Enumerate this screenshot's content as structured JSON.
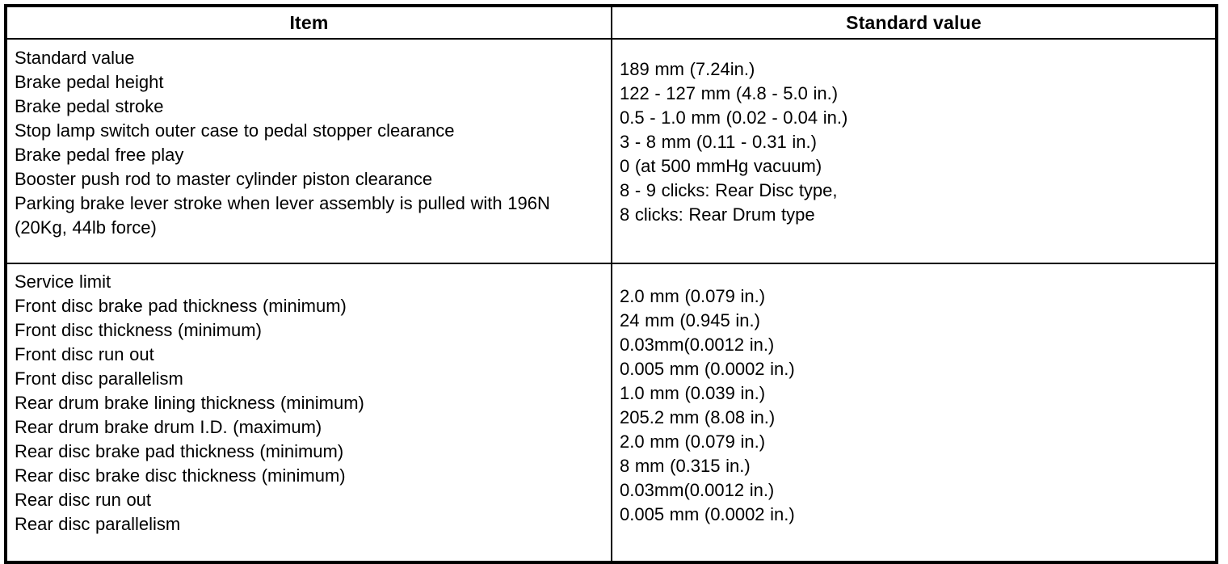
{
  "table": {
    "columns": [
      "Item",
      "Standard value"
    ],
    "sections": [
      {
        "name": "Standard value",
        "items": [
          "Standard value",
          "Brake pedal height",
          "Brake pedal stroke",
          "Stop lamp switch outer case to pedal stopper clearance",
          "Brake pedal free play",
          "Booster push rod to master cylinder piston clearance",
          "Parking brake lever stroke when lever assembly is pulled with 196N (20Kg, 44lb force)"
        ],
        "values": [
          "189 mm (7.24in.)",
          "122 - 127 mm (4.8 - 5.0 in.)",
          "0.5 - 1.0 mm (0.02 - 0.04 in.)",
          "3 - 8 mm (0.11 - 0.31 in.)",
          "0 (at 500 mmHg vacuum)",
          "8 - 9 clicks: Rear Disc type,",
          "8 clicks: Rear Drum type"
        ]
      },
      {
        "name": "Service limit",
        "items": [
          "Service limit",
          "Front disc brake pad thickness (minimum)",
          "Front disc thickness (minimum)",
          "Front disc run out",
          "Front disc parallelism",
          "Rear drum brake lining thickness (minimum)",
          "Rear drum brake drum I.D. (maximum)",
          "Rear disc brake pad thickness (minimum)",
          "Rear disc brake disc thickness (minimum)",
          "Rear disc run out",
          "Rear disc parallelism"
        ],
        "values": [
          "2.0 mm (0.079 in.)",
          "24 mm (0.945 in.)",
          "0.03mm(0.0012 in.)",
          "0.005 mm (0.0002 in.)",
          "1.0 mm (0.039 in.)",
          "205.2 mm (8.08 in.)",
          "2.0 mm (0.079 in.)",
          "8 mm (0.315 in.)",
          "0.03mm(0.0012 in.)",
          "0.005 mm (0.0002 in.)"
        ]
      }
    ],
    "colors": {
      "border": "#000000",
      "text": "#000000",
      "background": "#ffffff"
    }
  }
}
